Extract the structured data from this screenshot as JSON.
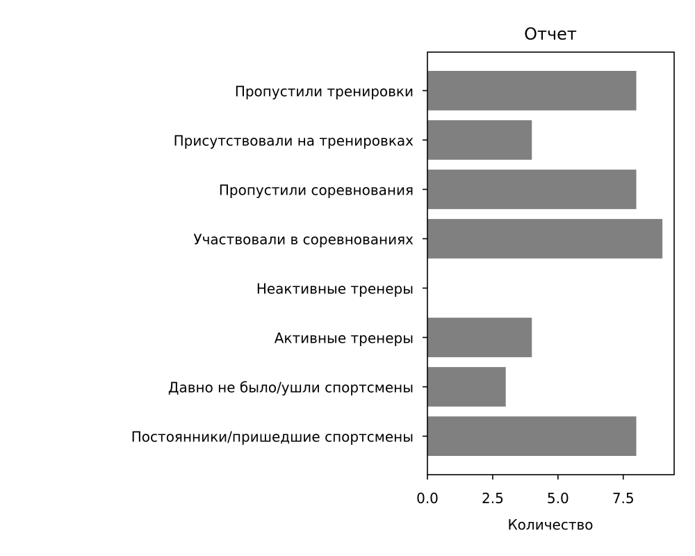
{
  "chart_data": {
    "type": "bar",
    "orientation": "horizontal",
    "title": "Отчет",
    "xlabel": "Количество",
    "ylabel": "",
    "xlim": [
      0,
      9.45
    ],
    "xticks": [
      0.0,
      2.5,
      5.0,
      7.5
    ],
    "xtick_labels": [
      "0.0",
      "2.5",
      "5.0",
      "7.5"
    ],
    "grid": false,
    "bar_color": "#808080",
    "categories": [
      "Пропустили тренировки",
      "Присутствовали на тренировках",
      "Пропустили соревнования",
      "Участвовали в соревнованиях",
      "Неактивные тренеры",
      "Активные тренеры",
      "Давно не было/ушли спортсмены",
      "Постоянники/пришедшие спортсмены"
    ],
    "values": [
      8,
      4,
      8,
      9,
      0,
      4,
      3,
      8
    ]
  }
}
